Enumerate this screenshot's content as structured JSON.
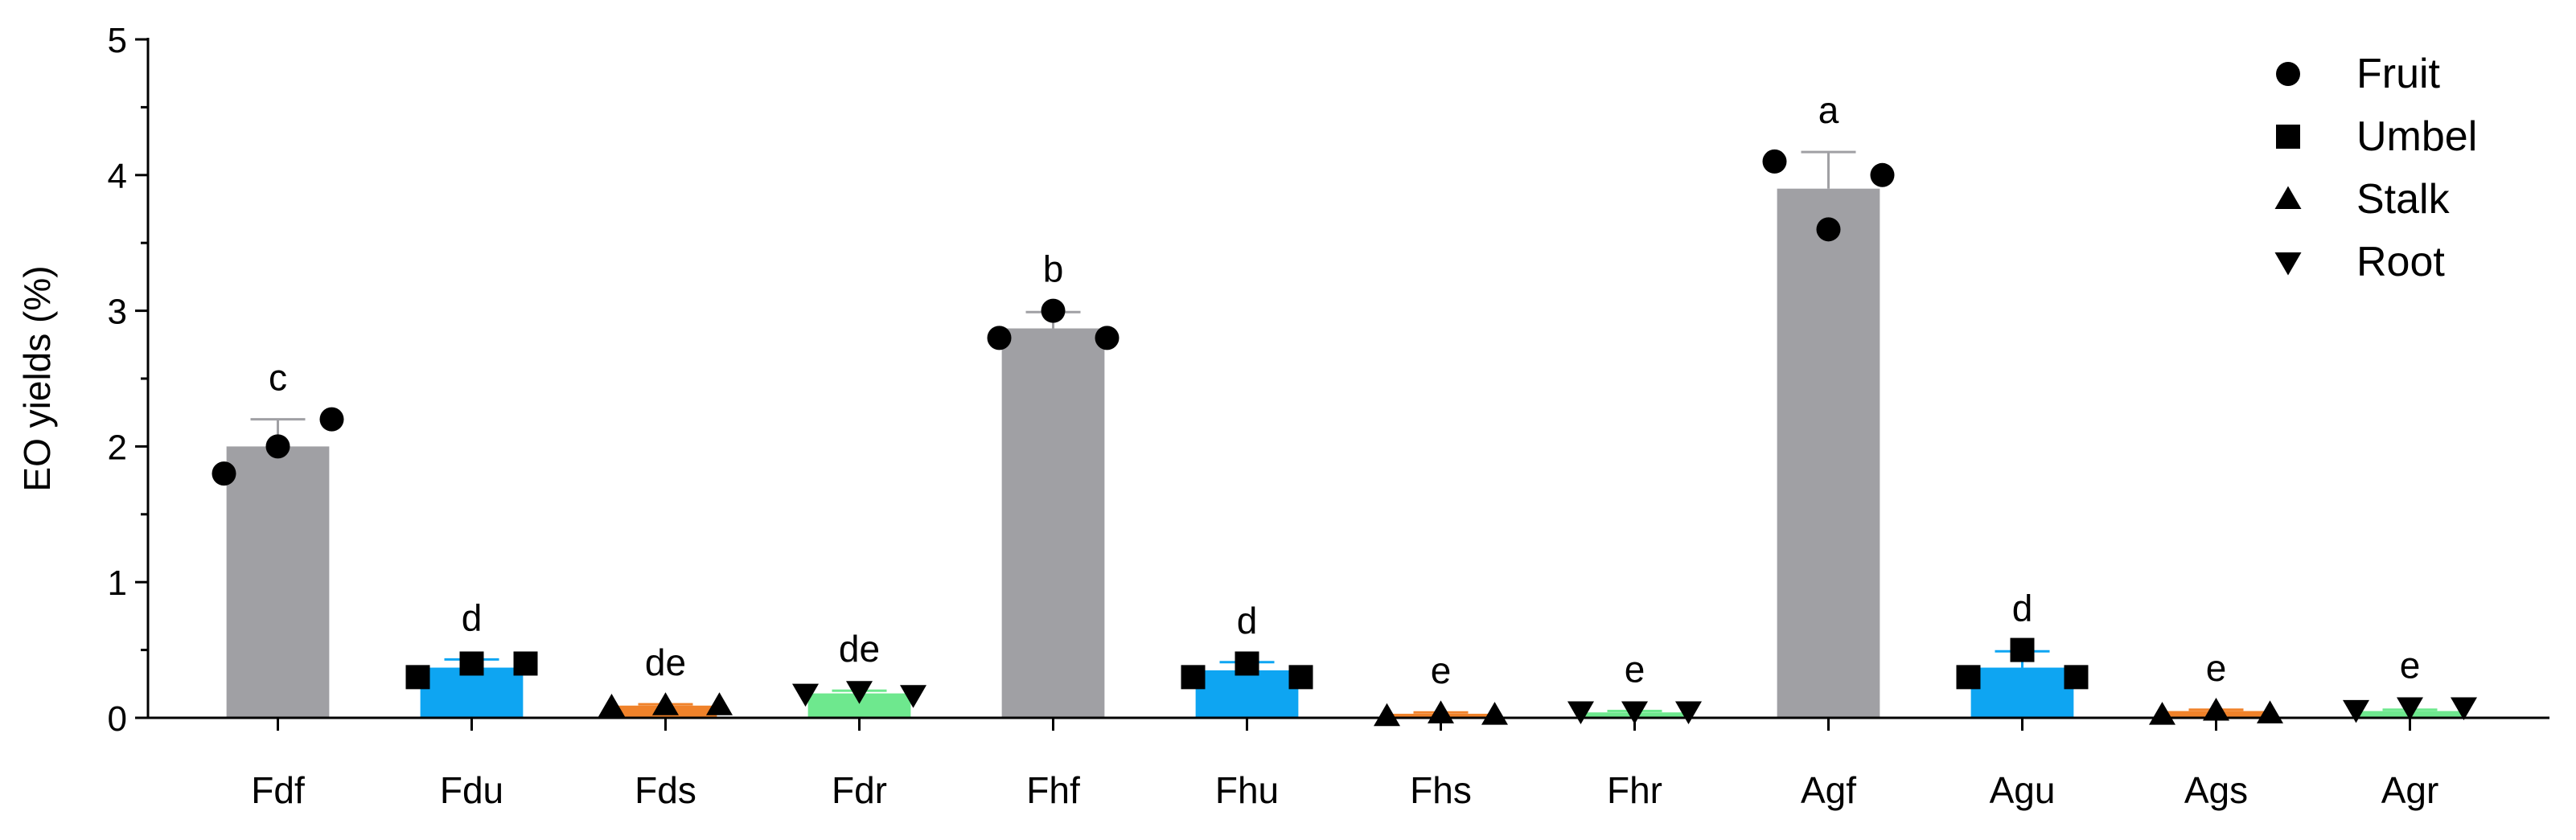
{
  "chart_data": {
    "type": "bar",
    "y_label": "EO yields (%)",
    "categories": [
      "Fdf",
      "Fdu",
      "Fds",
      "Fdr",
      "Fhf",
      "Fhu",
      "Fhs",
      "Fhr",
      "Agf",
      "Agu",
      "Ags",
      "Agr"
    ],
    "values": [
      2.0,
      0.37,
      0.09,
      0.18,
      2.87,
      0.35,
      0.03,
      0.04,
      3.9,
      0.37,
      0.05,
      0.05
    ],
    "errors": [
      0.2,
      0.06,
      0.01,
      0.02,
      0.12,
      0.06,
      0.01,
      0.01,
      0.27,
      0.12,
      0.01,
      0.01
    ],
    "points": [
      [
        1.8,
        2.0,
        2.2
      ],
      [
        0.3,
        0.4,
        0.4
      ],
      [
        0.08,
        0.09,
        0.09
      ],
      [
        0.18,
        0.2,
        0.17
      ],
      [
        2.8,
        3.0,
        2.8
      ],
      [
        0.3,
        0.4,
        0.3
      ],
      [
        0.01,
        0.03,
        0.02
      ],
      [
        0.05,
        0.05,
        0.05
      ],
      [
        4.1,
        3.6,
        4.0
      ],
      [
        0.3,
        0.5,
        0.3
      ],
      [
        0.02,
        0.05,
        0.03
      ],
      [
        0.06,
        0.08,
        0.08
      ]
    ],
    "annotations": [
      "c",
      "d",
      "de",
      "de",
      "b",
      "d",
      "e",
      "e",
      "a",
      "d",
      "e",
      "e"
    ],
    "colors": [
      "#a0a0a4",
      "#0ea5f2",
      "#f0822a",
      "#6ee88e",
      "#a0a0a4",
      "#0ea5f2",
      "#f0822a",
      "#6ee88e",
      "#a0a0a4",
      "#0ea5f2",
      "#f0822a",
      "#6ee88e"
    ],
    "markers": [
      "circle",
      "square",
      "triangle-up",
      "triangle-down",
      "circle",
      "square",
      "triangle-up",
      "triangle-down",
      "circle",
      "square",
      "triangle-up",
      "triangle-down"
    ],
    "legend": [
      {
        "name": "Fruit",
        "marker": "circle"
      },
      {
        "name": "Umbel",
        "marker": "square"
      },
      {
        "name": "Stalk",
        "marker": "triangle-up"
      },
      {
        "name": "Root",
        "marker": "triangle-down"
      }
    ],
    "legend_position": "upper right",
    "ylim": [
      0,
      5
    ],
    "yticks": [
      0,
      1,
      2,
      3,
      4,
      5
    ],
    "yminorticks": [
      0.5,
      1.5,
      2.5,
      3.5,
      4.5
    ]
  }
}
